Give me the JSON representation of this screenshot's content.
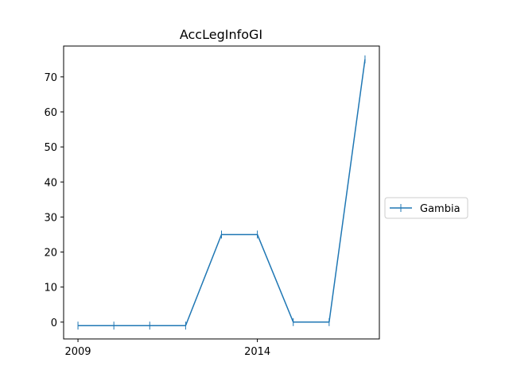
{
  "chart_data": {
    "type": "line",
    "title": "AccLegInfoGI",
    "xlabel": "",
    "ylabel": "",
    "x": [
      2009,
      2010,
      2011,
      2012,
      2013,
      2014,
      2015,
      2016,
      2017
    ],
    "series": [
      {
        "name": "Gambia",
        "values": [
          -1,
          -1,
          -1,
          -1,
          25,
          25,
          0,
          0,
          75
        ],
        "color": "#1f77b4",
        "marker": "|"
      }
    ],
    "xlim": [
      2008.6,
      2017.4
    ],
    "ylim": [
      -4.8,
      78.8
    ],
    "xticks": [
      2009,
      2014
    ],
    "yticks": [
      0,
      10,
      20,
      30,
      40,
      50,
      60,
      70
    ],
    "grid": false,
    "legend": "right-outside"
  }
}
